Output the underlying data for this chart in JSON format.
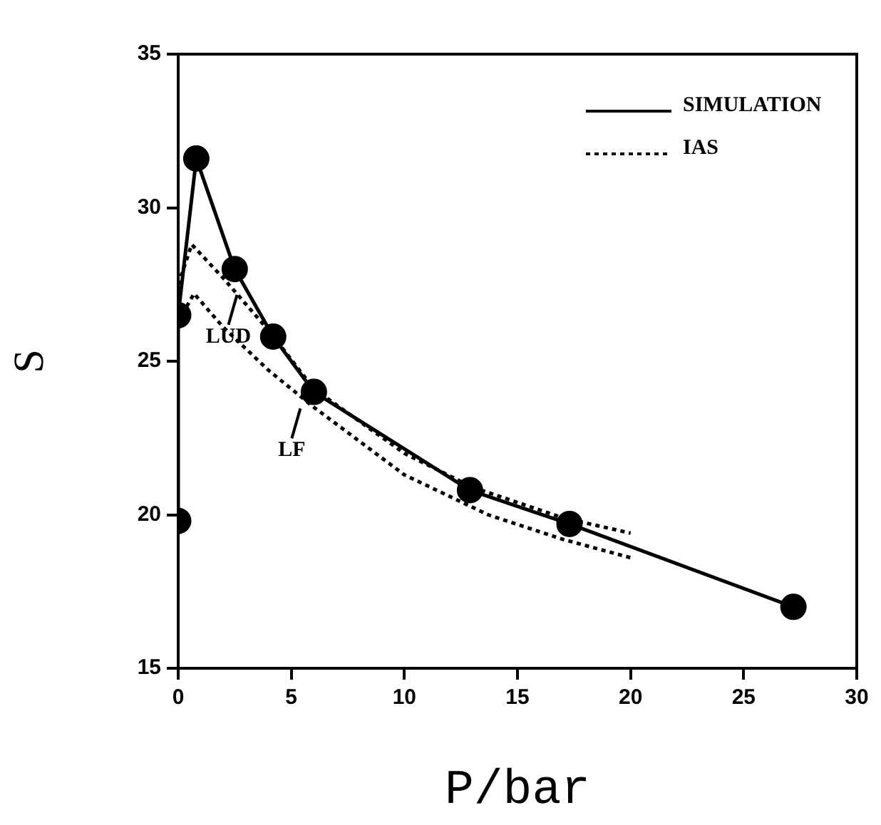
{
  "chart_data": {
    "type": "line",
    "xlabel": "P/bar",
    "ylabel": "S",
    "xlim": [
      0,
      30
    ],
    "xticks": [
      0,
      5,
      10,
      15,
      20,
      25,
      30
    ],
    "ylim": [
      15,
      35
    ],
    "yticks": [
      15,
      20,
      25,
      30,
      35
    ],
    "grid": false,
    "legend": "top right",
    "series": [
      {
        "name": "SIMULATION",
        "color": "#000000",
        "marker": "circle",
        "line_style": "solid",
        "x": [
          0,
          0,
          0.8,
          2.5,
          4.2,
          6.0,
          12.9,
          17.3,
          27.2
        ],
        "values": [
          19.8,
          26.5,
          31.6,
          28.0,
          25.8,
          24.0,
          20.8,
          19.7,
          17.0
        ]
      },
      {
        "name": "IAS",
        "color": "#000000",
        "marker": "none",
        "line_style": "dotted",
        "x": [
          0,
          0.6,
          2,
          4,
          6,
          10,
          13,
          17,
          20
        ],
        "values": [
          27.5,
          28.8,
          27.7,
          26.0,
          24.1,
          22.0,
          20.9,
          19.9,
          19.4
        ]
      },
      {
        "color": "#000000",
        "marker": "none",
        "line_style": "dotted",
        "x": [
          0,
          0.7,
          2,
          4,
          6,
          10,
          13.7,
          17,
          20
        ],
        "values": [
          26.3,
          27.2,
          26.1,
          24.7,
          23.5,
          21.3,
          20.0,
          19.2,
          18.6
        ]
      }
    ],
    "annotations": [
      {
        "text": "LUD",
        "x": 2.6,
        "y": 27.3
      },
      {
        "text": "LF",
        "x": 5.4,
        "y": 23.6
      }
    ]
  }
}
